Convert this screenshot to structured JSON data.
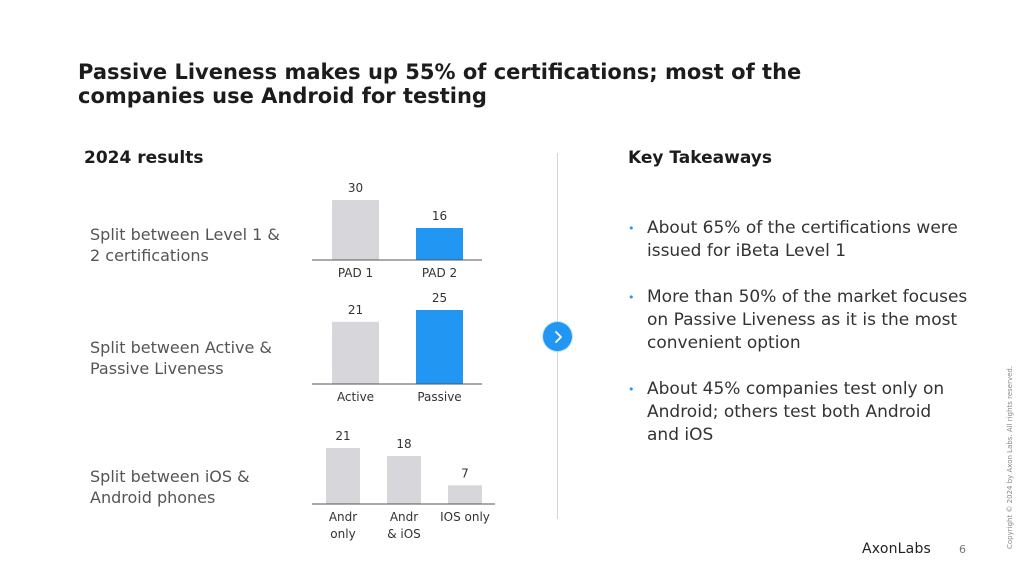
{
  "header": {
    "title": "Passive Liveness makes up 55% of certifications; most of the companies use Android for testing"
  },
  "left": {
    "heading": "2024 results",
    "rows": [
      {
        "label": "Split between Level 1 & 2 certifications"
      },
      {
        "label": "Split between Active & Passive Liveness"
      },
      {
        "label": "Split between iOS & Android phones"
      }
    ]
  },
  "chart_data": [
    {
      "type": "bar",
      "categories": [
        "PAD 1",
        "PAD 2"
      ],
      "values": [
        30,
        16
      ],
      "colors": [
        "#d6d6db",
        "#2196f3"
      ],
      "title": "",
      "xlabel": "",
      "ylabel": "",
      "ylim": [
        0,
        30
      ],
      "grid": false
    },
    {
      "type": "bar",
      "categories": [
        "Active",
        "Passive"
      ],
      "values": [
        21,
        25
      ],
      "colors": [
        "#d6d6db",
        "#2196f3"
      ],
      "title": "",
      "xlabel": "",
      "ylabel": "",
      "ylim": [
        0,
        25
      ],
      "grid": false
    },
    {
      "type": "bar",
      "categories": [
        "Andr only",
        "Andr & iOS",
        "IOS only"
      ],
      "values": [
        21,
        18,
        7
      ],
      "colors": [
        "#d6d6db",
        "#d6d6db",
        "#d6d6db"
      ],
      "title": "",
      "xlabel": "",
      "ylabel": "",
      "ylim": [
        0,
        21
      ],
      "grid": false
    }
  ],
  "right": {
    "heading": "Key Takeaways",
    "items": [
      {
        "text": "About 65% of the certifications were issued for iBeta Level 1"
      },
      {
        "text": "More than 50% of the market focuses on Passive Liveness as it is the most convenient option"
      },
      {
        "text": "About 45% companies test only on Android; others test both Android and iOS"
      }
    ],
    "bullet": "•"
  },
  "footer": {
    "brand": "AxonLabs",
    "page": "6",
    "copyright": "Copyright © 2024 by Axon Labs. All rights reserved."
  },
  "icons": {
    "next": "chevron-right-icon"
  },
  "colors": {
    "accent": "#2196f3",
    "bar_neutral": "#d6d6db"
  }
}
